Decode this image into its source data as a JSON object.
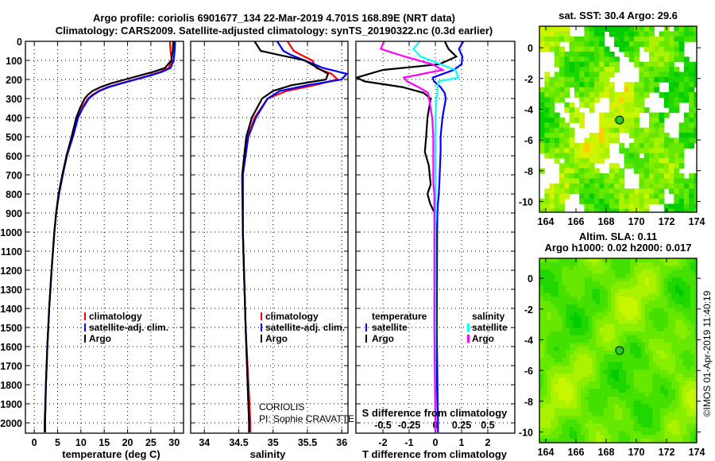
{
  "titles": {
    "line1": "Argo profile: coriolis 6901677_134 22-Mar-2019 4.701S 168.89E (NRT data)",
    "line2": "Climatology: CARS2009. Satellite-adjusted climatology: synTS_20190322.nc (0.3d earlier)"
  },
  "credit": {
    "center": "CORIOLIS",
    "pi": "PI: Sophie CRAVATTE",
    "copyright": "©IMOS 01-Apr-2019 11:40:19"
  },
  "colors": {
    "climatology": "#ff0000",
    "satellite": "#0000ff",
    "argo": "#000000",
    "sal_satellite": "#00ffff",
    "sal_argo": "#ff00ff"
  },
  "chart_data": [
    {
      "type": "line",
      "id": "temperature",
      "xlabel": "temperature (deg C)",
      "ylabel": "depth",
      "xlim": [
        -1.9,
        32
      ],
      "ylim": [
        0,
        2054
      ],
      "xticks": [
        0,
        5,
        10,
        15,
        20,
        25,
        30
      ],
      "xtick_labels": [
        "0",
        "5",
        "10",
        "15",
        "20",
        "25",
        "30"
      ],
      "yticks": [
        0,
        100,
        200,
        300,
        400,
        500,
        600,
        700,
        800,
        900,
        1000,
        1100,
        1200,
        1300,
        1400,
        1500,
        1600,
        1700,
        1800,
        1900,
        2000
      ],
      "ytick_labels": [
        "0",
        "100",
        "200",
        "300",
        "400",
        "500",
        "600",
        "700",
        "800",
        "900",
        "1000",
        "1100",
        "1200",
        "1300",
        "1400",
        "1500",
        "1600",
        "1700",
        "1800",
        "1900",
        "2000"
      ],
      "grid": true,
      "legend": [
        "climatology",
        "satellite-adj. clim.",
        "Argo"
      ],
      "depth": [
        0,
        50,
        100,
        140,
        160,
        180,
        200,
        220,
        240,
        260,
        280,
        300,
        350,
        400,
        500,
        600,
        700,
        800,
        900,
        1000,
        1200,
        1400,
        1600,
        1800,
        2000,
        2050
      ],
      "series": [
        {
          "name": "climatology",
          "color": "#ff0000",
          "values": [
            29.1,
            29.2,
            29.5,
            28.8,
            27,
            24.5,
            21.5,
            18.5,
            15.8,
            13.8,
            12.5,
            11.5,
            10.2,
            9.3,
            8.2,
            7.0,
            6.1,
            5.3,
            4.7,
            4.3,
            3.7,
            3.2,
            2.8,
            2.5,
            2.2,
            2.2
          ]
        },
        {
          "name": "satellite-adj. clim.",
          "color": "#0000ff",
          "values": [
            30.2,
            30.1,
            29.9,
            29.2,
            27.4,
            24.8,
            21.8,
            18.8,
            16.0,
            14.0,
            12.7,
            11.7,
            10.4,
            9.4,
            8.3,
            7.0,
            6.1,
            5.3,
            4.7,
            4.3,
            3.7,
            3.2,
            2.8,
            2.5,
            2.3,
            2.3
          ]
        },
        {
          "name": "Argo",
          "color": "#000000",
          "values": [
            29.8,
            29.7,
            29.4,
            28,
            25.5,
            22.5,
            19.5,
            16.5,
            14.2,
            12.5,
            11.5,
            10.8,
            9.8,
            9.0,
            8.0,
            6.9,
            6.0,
            5.2,
            4.7,
            4.3,
            3.7,
            3.2,
            2.8,
            2.5,
            2.3,
            2.3
          ]
        }
      ]
    },
    {
      "type": "line",
      "id": "salinity",
      "xlabel": "salinity",
      "xlim": [
        33.8,
        36.09
      ],
      "ylim": [
        0,
        2054
      ],
      "xticks": [
        34,
        34.5,
        35,
        35.5,
        36
      ],
      "xtick_labels": [
        "34",
        "34.5",
        "35",
        "35.5",
        "36"
      ],
      "grid": true,
      "legend": [
        "climatology",
        "satellite-adj. clim.",
        "Argo"
      ],
      "depth": [
        0,
        50,
        70,
        100,
        140,
        170,
        200,
        230,
        260,
        300,
        400,
        500,
        700,
        1000,
        1500,
        2000,
        2050
      ],
      "series": [
        {
          "name": "climatology",
          "color": "#ff0000",
          "values": [
            35.21,
            35.3,
            35.4,
            35.57,
            35.63,
            35.85,
            35.94,
            35.6,
            35.2,
            34.92,
            34.73,
            34.63,
            34.56,
            34.56,
            34.6,
            34.67,
            34.67
          ]
        },
        {
          "name": "satellite-adj. clim.",
          "color": "#0000ff",
          "values": [
            35.06,
            35.15,
            35.25,
            35.46,
            35.73,
            36.07,
            36.0,
            35.5,
            35.1,
            34.92,
            34.75,
            34.64,
            34.56,
            34.56,
            34.6,
            34.65,
            34.65
          ]
        },
        {
          "name": "Argo",
          "color": "#000000",
          "values": [
            34.73,
            34.82,
            35.07,
            35.46,
            35.65,
            35.8,
            35.77,
            35.27,
            35.0,
            34.84,
            34.69,
            34.61,
            34.55,
            34.56,
            34.6,
            34.65,
            34.65
          ]
        }
      ]
    },
    {
      "type": "line",
      "id": "difference",
      "xlabel": "T difference from climatology",
      "x2label": "S difference from climatology",
      "xlim": [
        -3.03,
        3.03
      ],
      "x2lim": [
        -0.7575,
        0.7575
      ],
      "ylim": [
        0,
        2054
      ],
      "xticks": [
        -2,
        -1,
        0,
        1,
        2
      ],
      "xtick_labels": [
        "-2",
        "-1",
        "0",
        "1",
        "2"
      ],
      "x2ticks": [
        -0.5,
        -0.25,
        0,
        0.25,
        0.5
      ],
      "x2tick_labels": [
        "-0.5",
        "-0.25",
        "0",
        "0.25",
        "0.5"
      ],
      "grid": true,
      "legend_temperature": {
        "title": "temperature",
        "items": [
          "satellite",
          "Argo"
        ]
      },
      "legend_salinity": {
        "title": "salinity",
        "items": [
          "satellite",
          "Argo"
        ]
      },
      "depth": [
        0,
        40,
        80,
        120,
        150,
        190,
        210,
        240,
        270,
        300,
        400,
        500,
        580,
        650,
        750,
        800,
        850,
        900,
        1000,
        1500,
        2000,
        2050
      ],
      "series": [
        {
          "name": "temperature satellite",
          "axis": "T",
          "color": "#0000ff",
          "values": [
            1.07,
            0.9,
            1.03,
            1.0,
            0.7,
            -0.1,
            -0.05,
            0.2,
            0.35,
            0.4,
            0.27,
            0.2,
            0.2,
            0.18,
            0.15,
            0.13,
            0.1,
            0.08,
            0.07,
            0.05,
            0.1,
            0.1
          ]
        },
        {
          "name": "temperature Argo",
          "axis": "T",
          "color": "#000000",
          "values": [
            0.36,
            0.5,
            0.8,
            0.15,
            -2.0,
            -3.0,
            -2.7,
            -1.25,
            -0.45,
            -0.18,
            -0.3,
            -0.35,
            -0.4,
            -0.25,
            -0.18,
            -0.3,
            -0.2,
            -0.03,
            0.05,
            0.05,
            0.0,
            0.0
          ]
        },
        {
          "name": "salinity satellite",
          "axis": "S",
          "color": "#00ffff",
          "values": [
            -0.15,
            -0.21,
            -0.14,
            0.05,
            0.19,
            0.22,
            0.03,
            0.02,
            0.02,
            0.01,
            0,
            0,
            0,
            0,
            0,
            0,
            0,
            0,
            0,
            0,
            0,
            0
          ]
        },
        {
          "name": "salinity Argo",
          "axis": "S",
          "color": "#ff00ff",
          "values": [
            -0.49,
            -0.52,
            -0.29,
            -0.03,
            0.07,
            -0.3,
            -0.27,
            -0.16,
            -0.07,
            -0.06,
            -0.03,
            -0.02,
            -0.02,
            -0.02,
            -0.02,
            -0.01,
            -0.01,
            -0.01,
            -0.01,
            -0.01,
            0,
            0
          ]
        }
      ]
    },
    {
      "type": "heatmap",
      "id": "sst_map",
      "title": "sat. SST: 30.4 Argo: 29.6",
      "lon_range": [
        163.58,
        174
      ],
      "lat_range": [
        -10.7,
        1.4
      ],
      "xticks": [
        164,
        166,
        168,
        170,
        172,
        174
      ],
      "xtick_labels": [
        "164",
        "166",
        "168",
        "170",
        "172",
        "174"
      ],
      "yticks": [
        0,
        -2,
        -4,
        -6,
        -8,
        -10
      ],
      "ytick_labels": [
        "0",
        "-2",
        "-4",
        "-6",
        "-8",
        "-10"
      ],
      "argo_position": {
        "lon": 168.89,
        "lat": -4.701
      }
    },
    {
      "type": "heatmap",
      "id": "sla_map",
      "title": "Altim. SLA: 0.11",
      "subtitle": "Argo h1000: 0.02 h2000: 0.017",
      "lon_range": [
        163.58,
        174
      ],
      "lat_range": [
        -10.7,
        1.3
      ],
      "xticks": [
        164,
        166,
        168,
        170,
        172,
        174
      ],
      "xtick_labels": [
        "164",
        "166",
        "168",
        "170",
        "172",
        "174"
      ],
      "yticks": [
        0,
        -2,
        -4,
        -6,
        -8,
        -10
      ],
      "ytick_labels": [
        "0",
        "-2",
        "-4",
        "-6",
        "-8",
        "-10"
      ],
      "argo_position": {
        "lon": 168.89,
        "lat": -4.701
      }
    }
  ]
}
